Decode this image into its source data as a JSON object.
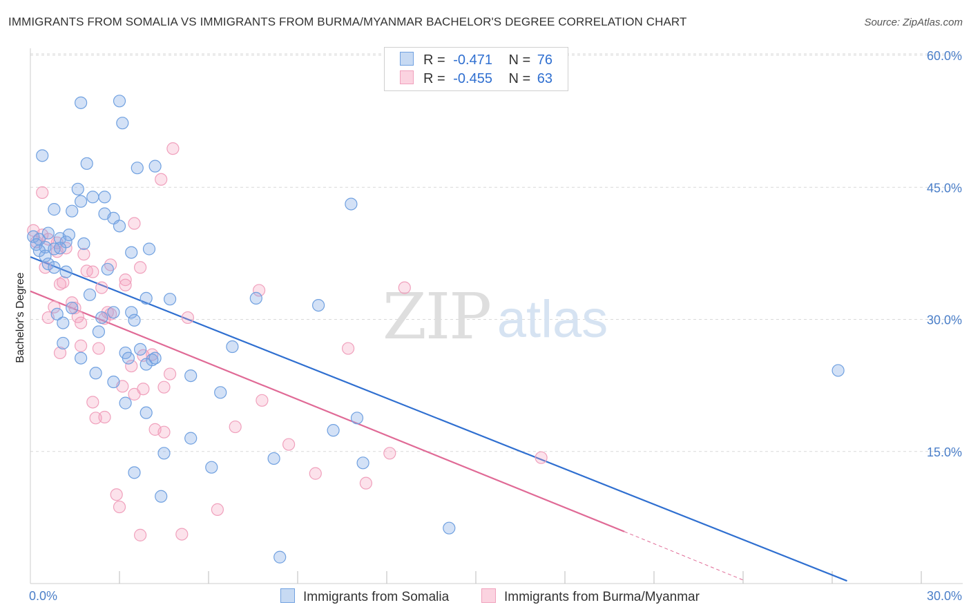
{
  "title": "IMMIGRANTS FROM SOMALIA VS IMMIGRANTS FROM BURMA/MYANMAR BACHELOR'S DEGREE CORRELATION CHART",
  "source": "Source: ZipAtlas.com",
  "watermark": {
    "zip": "ZIP",
    "atlas": "atlas"
  },
  "legend": {
    "r_label": "R =",
    "n_label": "N =",
    "series1": {
      "r": "-0.471",
      "n": "76"
    },
    "series2": {
      "r": "-0.455",
      "n": "63"
    }
  },
  "chart_data": {
    "type": "scatter",
    "title": "IMMIGRANTS FROM SOMALIA VS IMMIGRANTS FROM BURMA/MYANMAR BACHELOR'S DEGREE CORRELATION CHART",
    "xlabel": "",
    "ylabel": "Bachelor's Degree",
    "xlim": [
      0,
      30
    ],
    "ylim": [
      0,
      62
    ],
    "x_tick_labels": [
      "0.0%",
      "30.0%"
    ],
    "y_tick_labels": [
      "15.0%",
      "30.0%",
      "45.0%",
      "60.0%"
    ],
    "y_ticks": [
      15,
      30,
      45,
      60
    ],
    "colors": {
      "series1": "#6fa0e0",
      "series1_line": "#2f6fd0",
      "series2": "#f0a0bc",
      "series2_line": "#e06a96",
      "ticks": "#4a7ec8"
    },
    "series": [
      {
        "name": "Immigrants from Somalia",
        "r": -0.471,
        "n": 76,
        "trend": {
          "x0": 0,
          "y0": 37.1,
          "x1": 27.5,
          "y1": 0.3
        },
        "points": [
          [
            0.4,
            48.6
          ],
          [
            1.7,
            54.6
          ],
          [
            3.0,
            54.8
          ],
          [
            3.1,
            52.3
          ],
          [
            1.9,
            47.7
          ],
          [
            3.6,
            47.2
          ],
          [
            4.2,
            47.4
          ],
          [
            1.6,
            44.8
          ],
          [
            1.7,
            43.4
          ],
          [
            2.1,
            43.9
          ],
          [
            2.5,
            43.9
          ],
          [
            0.8,
            42.5
          ],
          [
            1.4,
            42.3
          ],
          [
            2.5,
            42.0
          ],
          [
            2.8,
            41.5
          ],
          [
            3.0,
            40.6
          ],
          [
            0.1,
            39.4
          ],
          [
            0.3,
            39.1
          ],
          [
            0.6,
            39.8
          ],
          [
            1.0,
            39.2
          ],
          [
            1.3,
            39.6
          ],
          [
            1.2,
            38.8
          ],
          [
            1.8,
            38.6
          ],
          [
            0.2,
            38.5
          ],
          [
            0.5,
            38.2
          ],
          [
            0.8,
            38.0
          ],
          [
            1.0,
            38.1
          ],
          [
            0.3,
            37.8
          ],
          [
            0.5,
            37.2
          ],
          [
            3.4,
            37.6
          ],
          [
            4.0,
            38.0
          ],
          [
            0.6,
            36.3
          ],
          [
            0.8,
            35.9
          ],
          [
            1.2,
            35.4
          ],
          [
            2.6,
            35.7
          ],
          [
            2.0,
            32.8
          ],
          [
            3.9,
            32.4
          ],
          [
            4.7,
            32.3
          ],
          [
            2.4,
            30.2
          ],
          [
            2.8,
            30.8
          ],
          [
            3.4,
            30.8
          ],
          [
            3.5,
            29.9
          ],
          [
            0.9,
            30.6
          ],
          [
            1.1,
            29.6
          ],
          [
            1.4,
            31.3
          ],
          [
            2.3,
            28.6
          ],
          [
            1.1,
            27.3
          ],
          [
            3.2,
            26.2
          ],
          [
            3.7,
            26.6
          ],
          [
            3.3,
            25.6
          ],
          [
            4.1,
            25.4
          ],
          [
            3.9,
            24.9
          ],
          [
            4.2,
            25.6
          ],
          [
            1.7,
            25.6
          ],
          [
            2.2,
            23.9
          ],
          [
            5.4,
            23.6
          ],
          [
            2.8,
            22.9
          ],
          [
            6.4,
            21.7
          ],
          [
            3.2,
            20.5
          ],
          [
            3.9,
            19.4
          ],
          [
            4.5,
            14.8
          ],
          [
            5.4,
            16.5
          ],
          [
            3.5,
            12.6
          ],
          [
            4.4,
            9.9
          ],
          [
            6.1,
            13.2
          ],
          [
            8.2,
            14.2
          ],
          [
            10.2,
            17.4
          ],
          [
            11.0,
            18.8
          ],
          [
            11.2,
            13.7
          ],
          [
            8.4,
            3.0
          ],
          [
            10.8,
            43.1
          ],
          [
            6.8,
            26.9
          ],
          [
            9.7,
            31.6
          ],
          [
            7.6,
            32.4
          ],
          [
            14.1,
            6.3
          ],
          [
            27.2,
            24.2
          ]
        ]
      },
      {
        "name": "Immigrants from Burma/Myanmar",
        "r": -0.455,
        "n": 63,
        "trend": {
          "x0": 0,
          "y0": 33.2,
          "x1": 20.0,
          "y1": 5.9,
          "dash_x1": 24.0,
          "dash_y1": 0.4
        },
        "points": [
          [
            4.8,
            49.4
          ],
          [
            0.4,
            44.4
          ],
          [
            4.4,
            45.9
          ],
          [
            3.5,
            40.9
          ],
          [
            0.1,
            40.1
          ],
          [
            0.4,
            39.6
          ],
          [
            0.6,
            39.1
          ],
          [
            0.2,
            38.8
          ],
          [
            0.9,
            38.7
          ],
          [
            0.9,
            37.7
          ],
          [
            1.2,
            38.1
          ],
          [
            1.8,
            37.4
          ],
          [
            0.5,
            35.9
          ],
          [
            2.7,
            36.2
          ],
          [
            3.7,
            35.9
          ],
          [
            1.9,
            35.5
          ],
          [
            2.1,
            35.4
          ],
          [
            3.2,
            34.5
          ],
          [
            1.0,
            34.0
          ],
          [
            1.1,
            34.2
          ],
          [
            2.4,
            33.6
          ],
          [
            3.2,
            33.9
          ],
          [
            1.4,
            31.9
          ],
          [
            1.5,
            31.3
          ],
          [
            0.8,
            31.4
          ],
          [
            1.6,
            30.3
          ],
          [
            0.6,
            30.2
          ],
          [
            2.5,
            30.1
          ],
          [
            2.6,
            30.8
          ],
          [
            2.7,
            30.6
          ],
          [
            5.3,
            30.2
          ],
          [
            1.7,
            29.6
          ],
          [
            1.0,
            26.2
          ],
          [
            1.7,
            27.0
          ],
          [
            2.3,
            26.7
          ],
          [
            3.8,
            25.9
          ],
          [
            3.4,
            24.7
          ],
          [
            3.1,
            22.4
          ],
          [
            3.5,
            21.5
          ],
          [
            3.8,
            22.1
          ],
          [
            4.5,
            22.3
          ],
          [
            4.7,
            23.8
          ],
          [
            2.1,
            20.6
          ],
          [
            2.2,
            18.8
          ],
          [
            2.5,
            18.9
          ],
          [
            4.2,
            17.5
          ],
          [
            4.5,
            17.2
          ],
          [
            6.9,
            17.8
          ],
          [
            7.8,
            20.8
          ],
          [
            8.7,
            15.8
          ],
          [
            7.7,
            33.3
          ],
          [
            9.6,
            12.5
          ],
          [
            10.7,
            26.7
          ],
          [
            12.6,
            33.6
          ],
          [
            12.1,
            14.8
          ],
          [
            17.2,
            14.3
          ],
          [
            11.3,
            11.4
          ],
          [
            2.9,
            10.1
          ],
          [
            3.0,
            8.7
          ],
          [
            3.7,
            5.5
          ],
          [
            5.1,
            5.6
          ],
          [
            6.3,
            8.4
          ],
          [
            4.1,
            26.0
          ]
        ]
      }
    ]
  },
  "bottom_legend": {
    "series1_label": "Immigrants from Somalia",
    "series2_label": "Immigrants from Burma/Myanmar"
  }
}
